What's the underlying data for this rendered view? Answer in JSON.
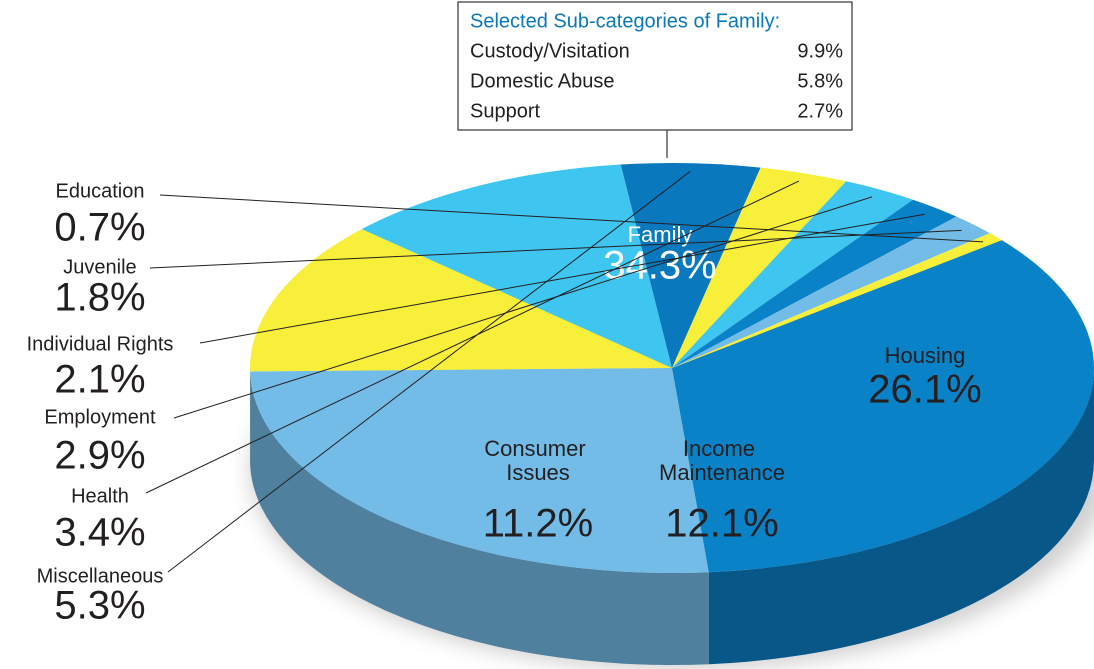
{
  "chart_data": {
    "type": "pie",
    "categories": [
      "Family",
      "Housing",
      "Income Maintenance",
      "Consumer Issues",
      "Miscellaneous",
      "Health",
      "Employment",
      "Individual Rights",
      "Juvenile",
      "Education"
    ],
    "values": [
      34.3,
      26.1,
      12.1,
      11.2,
      5.3,
      3.4,
      2.9,
      2.1,
      1.8,
      0.7
    ],
    "value_labels": [
      "34.3%",
      "26.1%",
      "12.1%",
      "11.2%",
      "5.3%",
      "3.4%",
      "2.9%",
      "2.1%",
      "1.8%",
      "0.7%"
    ],
    "colors": [
      "#0a82c8",
      "#74bce8",
      "#f8ef3a",
      "#3ec6f0",
      "#0a78bd",
      "#f8ef3a",
      "#3ec6f0",
      "#0a82c8",
      "#74bce8",
      "#f8ef3a"
    ],
    "inset": {
      "title": "Selected Sub-categories of Family:",
      "rows": [
        [
          "Custody/Visitation",
          "9.9%"
        ],
        [
          "Domestic Abuse",
          "5.8%"
        ],
        [
          "Support",
          "2.7%"
        ]
      ]
    }
  }
}
